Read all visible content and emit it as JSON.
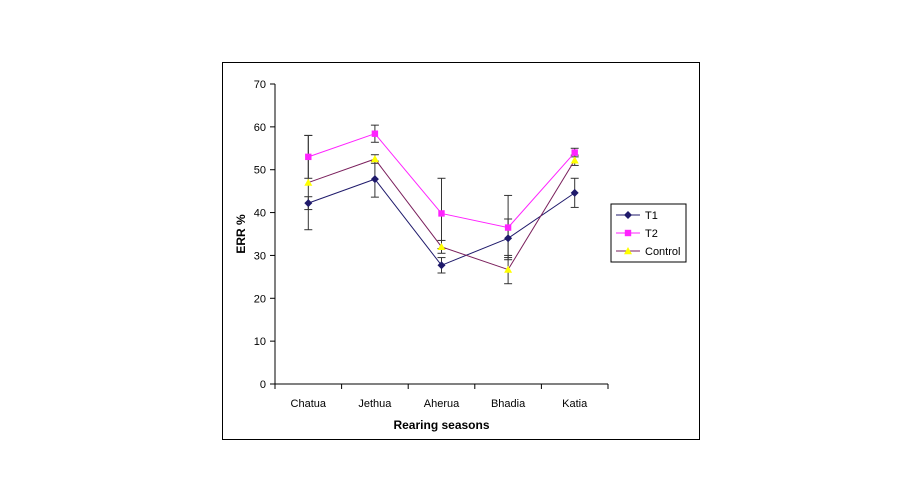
{
  "chart_data": {
    "type": "line",
    "xlabel": "Rearing seasons",
    "ylabel": "ERR %",
    "ylim": [
      0,
      70
    ],
    "yticks": [
      0,
      10,
      20,
      30,
      40,
      50,
      60,
      70
    ],
    "categories": [
      "Chatua",
      "Jethua",
      "Aherua",
      "Bhadia",
      "Katia"
    ],
    "legend_position": "right",
    "series": [
      {
        "name": "T1",
        "color": "#1f1a6b",
        "marker": "diamond",
        "values": [
          42.2,
          47.8,
          27.7,
          34,
          44.6
        ],
        "errors": [
          1.5,
          4.2,
          1.8,
          4.5,
          3.4
        ]
      },
      {
        "name": "T2",
        "color": "#ff22ff",
        "marker": "square",
        "values": [
          53,
          58.4,
          39.8,
          36.5,
          54
        ],
        "errors": [
          5,
          2,
          8.2,
          7.5,
          1
        ]
      },
      {
        "name": "Control",
        "color": "#ffff00",
        "line_color": "#7a1f5c",
        "marker": "triangle",
        "values": [
          47,
          52.5,
          32,
          26.7,
          52.2
        ],
        "errors": [
          11,
          1,
          1.5,
          3.3,
          1.2
        ]
      }
    ]
  }
}
